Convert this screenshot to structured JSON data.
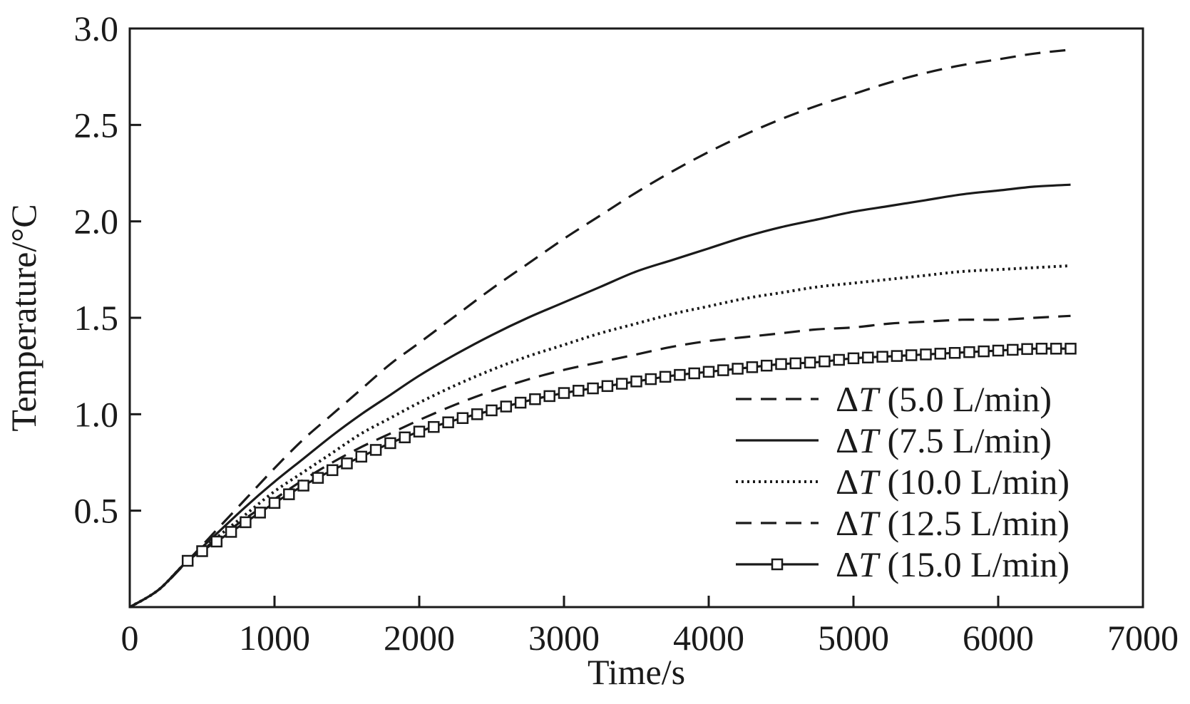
{
  "chart_data": {
    "type": "line",
    "title": "",
    "xlabel": "Time/s",
    "ylabel": "Temperature/°C",
    "xlim": [
      0,
      7000
    ],
    "ylim": [
      0,
      3.0
    ],
    "xticks": [
      0,
      1000,
      2000,
      3000,
      4000,
      5000,
      6000,
      7000
    ],
    "xtick_labels": [
      "0",
      "1000",
      "2000",
      "3000",
      "4000",
      "5000",
      "6000",
      "7000"
    ],
    "yticks": [
      0.5,
      1.0,
      1.5,
      2.0,
      2.5,
      3.0
    ],
    "ytick_labels": [
      "0.5",
      "1.0",
      "1.5",
      "2.0",
      "2.5",
      "3.0"
    ],
    "grid": false,
    "legend_position": "bottom-right",
    "series": [
      {
        "name": "ΔT (5.0 L/min)",
        "legend_symbol": "Δ",
        "legend_var": "T",
        "legend_rest": " (5.0 L/min)",
        "style": "dashed",
        "x": [
          0,
          200,
          400,
          600,
          800,
          1000,
          1200,
          1400,
          1600,
          1800,
          2000,
          2250,
          2500,
          2750,
          3000,
          3250,
          3500,
          3750,
          4000,
          4250,
          4500,
          4750,
          5000,
          5250,
          5500,
          5750,
          6000,
          6250,
          6500
        ],
        "y": [
          0,
          0.09,
          0.24,
          0.4,
          0.56,
          0.72,
          0.87,
          1.0,
          1.13,
          1.26,
          1.37,
          1.51,
          1.65,
          1.78,
          1.91,
          2.03,
          2.15,
          2.26,
          2.36,
          2.45,
          2.53,
          2.6,
          2.66,
          2.72,
          2.77,
          2.81,
          2.84,
          2.87,
          2.89
        ]
      },
      {
        "name": "ΔT (7.5 L/min)",
        "legend_symbol": "Δ",
        "legend_var": "T",
        "legend_rest": " (7.5 L/min)",
        "style": "solid",
        "x": [
          0,
          200,
          400,
          600,
          800,
          1000,
          1200,
          1400,
          1600,
          1800,
          2000,
          2250,
          2500,
          2750,
          3000,
          3250,
          3500,
          3750,
          4000,
          4250,
          4500,
          4750,
          5000,
          5250,
          5500,
          5750,
          6000,
          6250,
          6500
        ],
        "y": [
          0,
          0.09,
          0.24,
          0.38,
          0.52,
          0.65,
          0.77,
          0.89,
          1.0,
          1.1,
          1.2,
          1.31,
          1.41,
          1.5,
          1.58,
          1.66,
          1.74,
          1.8,
          1.86,
          1.92,
          1.97,
          2.01,
          2.05,
          2.08,
          2.11,
          2.14,
          2.16,
          2.18,
          2.19
        ]
      },
      {
        "name": "ΔT (10.0 L/min)",
        "legend_symbol": "Δ",
        "legend_var": "T",
        "legend_rest": " (10.0 L/min)",
        "style": "dotted",
        "x": [
          0,
          200,
          400,
          600,
          800,
          1000,
          1200,
          1400,
          1600,
          1800,
          2000,
          2250,
          2500,
          2750,
          3000,
          3250,
          3500,
          3750,
          4000,
          4250,
          4500,
          4750,
          5000,
          5250,
          5500,
          5750,
          6000,
          6250,
          6500
        ],
        "y": [
          0,
          0.09,
          0.24,
          0.36,
          0.48,
          0.6,
          0.7,
          0.8,
          0.9,
          0.98,
          1.06,
          1.15,
          1.23,
          1.3,
          1.36,
          1.42,
          1.47,
          1.52,
          1.56,
          1.6,
          1.63,
          1.66,
          1.68,
          1.7,
          1.72,
          1.74,
          1.75,
          1.76,
          1.77
        ]
      },
      {
        "name": "ΔT (12.5 L/min)",
        "legend_symbol": "Δ",
        "legend_var": "T",
        "legend_rest": " (12.5 L/min)",
        "style": "dashed",
        "x": [
          0,
          200,
          400,
          600,
          800,
          1000,
          1200,
          1400,
          1600,
          1800,
          2000,
          2250,
          2500,
          2750,
          3000,
          3250,
          3500,
          3750,
          4000,
          4250,
          4500,
          4750,
          5000,
          5250,
          5500,
          5750,
          6000,
          6250,
          6500
        ],
        "y": [
          0,
          0.09,
          0.24,
          0.35,
          0.46,
          0.56,
          0.66,
          0.75,
          0.83,
          0.9,
          0.97,
          1.05,
          1.12,
          1.18,
          1.23,
          1.27,
          1.31,
          1.35,
          1.38,
          1.4,
          1.42,
          1.44,
          1.45,
          1.47,
          1.48,
          1.49,
          1.49,
          1.5,
          1.51
        ]
      },
      {
        "name": "ΔT (15.0 L/min)",
        "legend_symbol": "Δ",
        "legend_var": "T",
        "legend_rest": " (15.0 L/min)",
        "style": "solid-square-markers",
        "x": [
          0,
          200,
          400,
          600,
          800,
          1000,
          1200,
          1400,
          1600,
          1800,
          2000,
          2250,
          2500,
          2750,
          3000,
          3250,
          3500,
          3750,
          4000,
          4250,
          4500,
          4750,
          5000,
          5250,
          5500,
          5750,
          6000,
          6250,
          6500
        ],
        "y": [
          0,
          0.09,
          0.24,
          0.34,
          0.44,
          0.54,
          0.63,
          0.71,
          0.78,
          0.85,
          0.91,
          0.97,
          1.02,
          1.07,
          1.11,
          1.14,
          1.17,
          1.2,
          1.22,
          1.24,
          1.26,
          1.27,
          1.29,
          1.3,
          1.31,
          1.32,
          1.33,
          1.34,
          1.34
        ]
      }
    ]
  }
}
